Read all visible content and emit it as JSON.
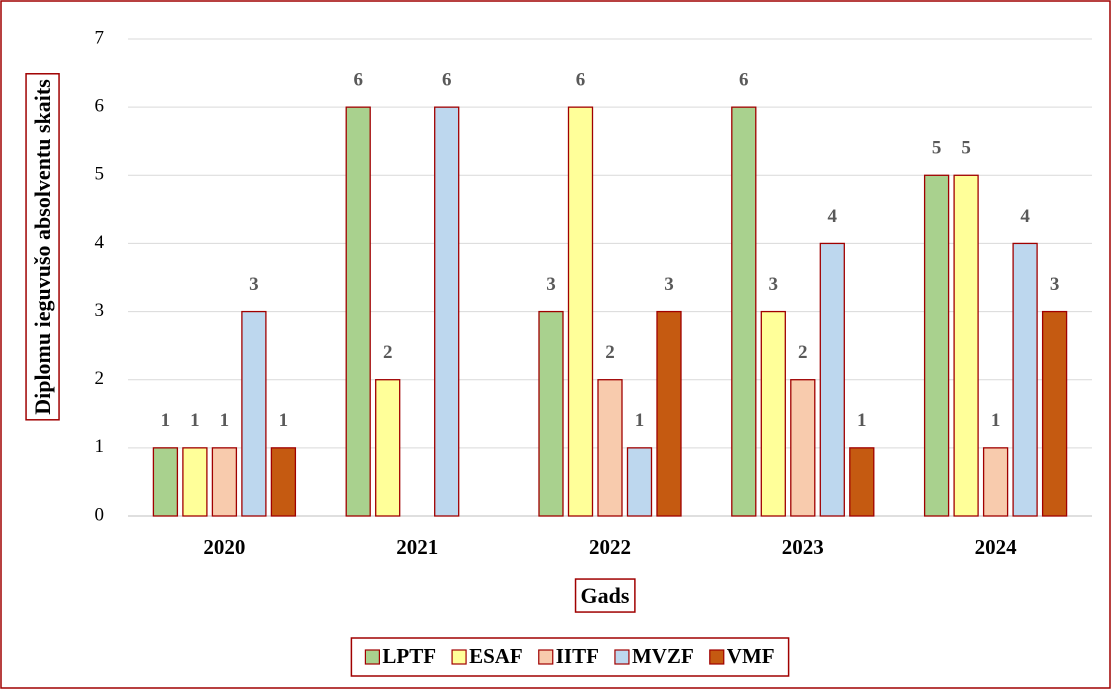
{
  "chart_data": {
    "type": "bar",
    "xlabel": "Gads",
    "ylabel": "Diplomu ieguvušo absolventu skaits",
    "categories": [
      "2020",
      "2021",
      "2022",
      "2023",
      "2024"
    ],
    "series": [
      {
        "name": "LPTF",
        "color": "#a9d18e",
        "values": [
          1,
          6,
          3,
          6,
          5
        ]
      },
      {
        "name": "ESAF",
        "color": "#ffff99",
        "values": [
          1,
          2,
          6,
          3,
          5
        ]
      },
      {
        "name": "IITF",
        "color": "#f8cbad",
        "values": [
          1,
          null,
          2,
          2,
          1
        ]
      },
      {
        "name": "MVZF",
        "color": "#bdd7ee",
        "values": [
          3,
          6,
          1,
          4,
          4
        ]
      },
      {
        "name": "VMF",
        "color": "#c55a11",
        "values": [
          1,
          null,
          3,
          1,
          3
        ]
      }
    ],
    "ylim": [
      0,
      7
    ],
    "yticks": [
      0,
      1,
      2,
      3,
      4,
      5,
      6,
      7
    ],
    "grid": true,
    "legend": "bottom"
  }
}
